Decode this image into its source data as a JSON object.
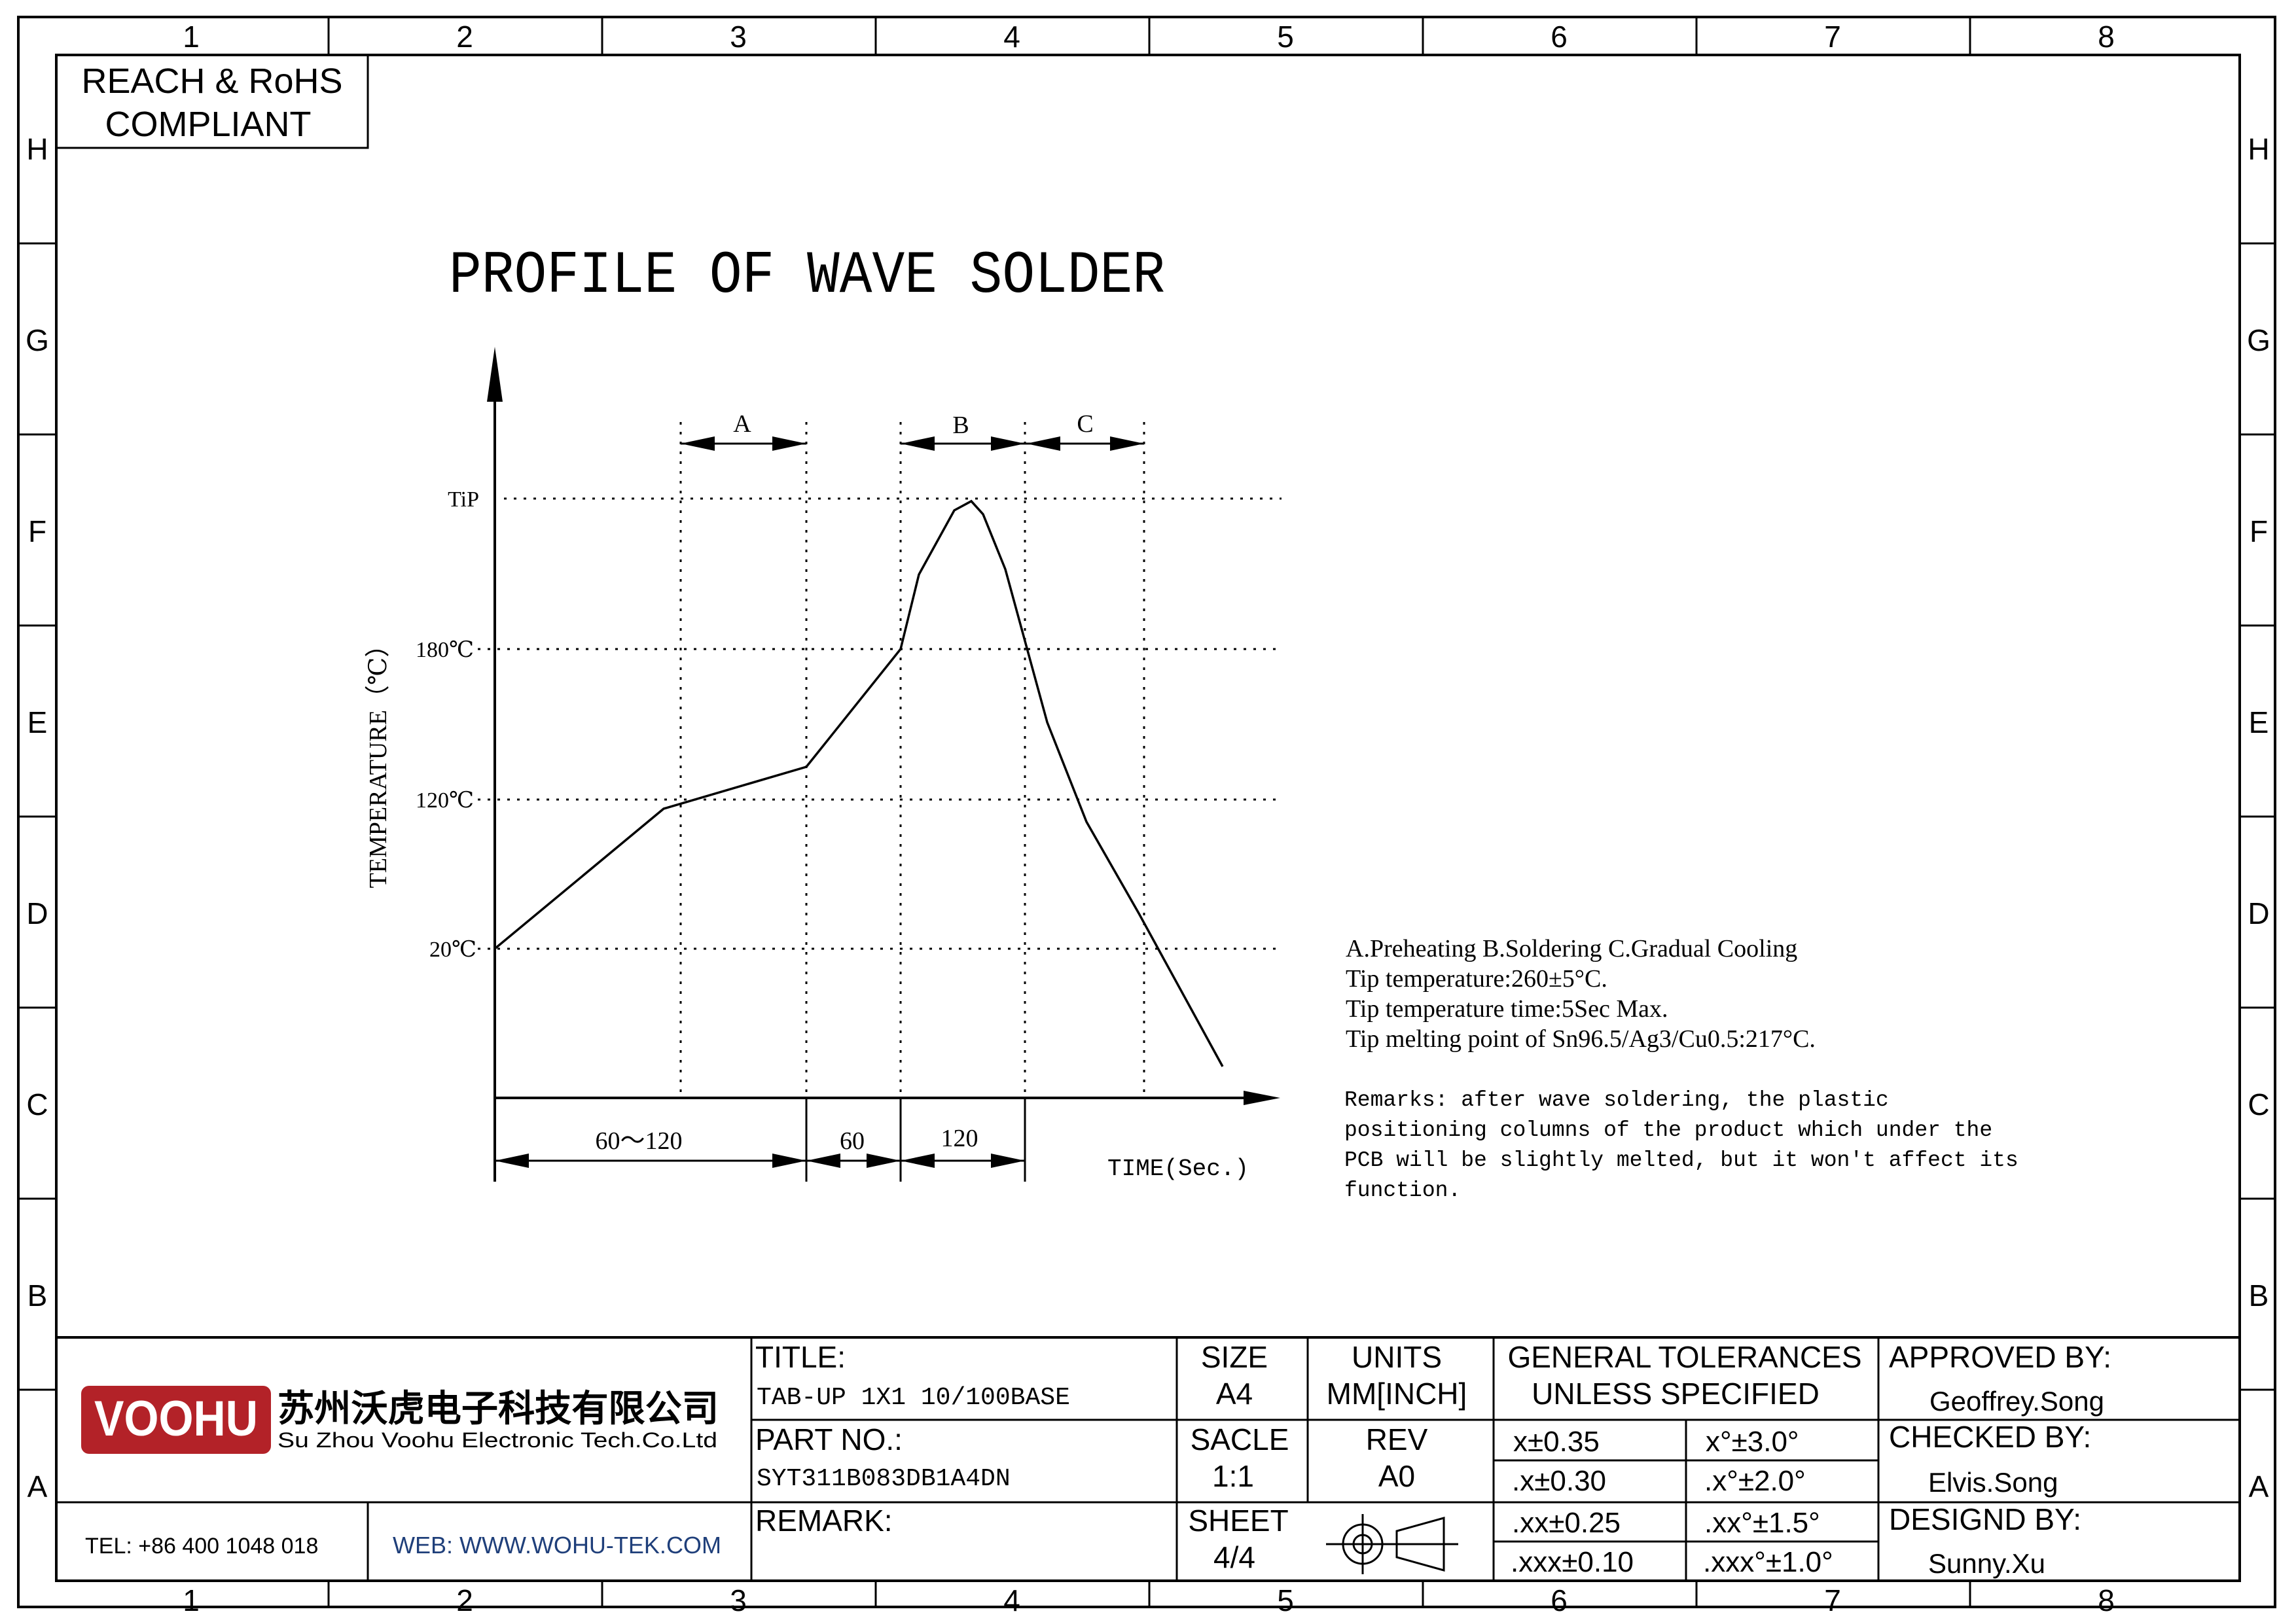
{
  "grid": {
    "columns": [
      "1",
      "2",
      "3",
      "4",
      "5",
      "6",
      "7",
      "8"
    ],
    "rows": [
      "H",
      "G",
      "F",
      "E",
      "D",
      "C",
      "B",
      "A"
    ]
  },
  "compliance_badge": {
    "line1": "REACH & RoHS",
    "line2": "COMPLIANT"
  },
  "diagram_title": "PROFILE OF WAVE SOLDER",
  "profile": {
    "y_axis_label": "TEMPERATURE（℃）",
    "x_axis_label": "TIME(Sec.)",
    "temp_levels": [
      "TiP",
      "180℃",
      "120℃",
      "20℃"
    ],
    "zone_labels": [
      "A",
      "B",
      "C"
    ],
    "time_spans": [
      "60～120",
      "60",
      "120"
    ]
  },
  "notes": {
    "lines": [
      "A.Preheating  B.Soldering  C.Gradual Cooling",
      "Tip temperature:260±5°C.",
      "Tip temperature time:5Sec Max.",
      "Tip melting point of Sn96.5/Ag3/Cu0.5:217°C."
    ],
    "remarks": [
      "Remarks: after wave soldering, the plastic",
      "positioning columns of the product  which under the",
      "PCB will be slightly melted, but it won't affect its",
      "function."
    ]
  },
  "company": {
    "logo_text": "VOOHU",
    "name_cn": "苏州沃虎电子科技有限公司",
    "name_en": "Su Zhou Voohu Electronic Tech.Co.Ltd",
    "tel": "TEL: +86 400 1048 018",
    "web": "WEB: WWW.WOHU-TEK.COM",
    "brand_color": "#b32228"
  },
  "title_block": {
    "title_label": "TITLE:",
    "title_value": "TAB-UP 1X1 10/100BASE",
    "part_label": "PART NO.:",
    "part_value": "SYT311B083DB1A4DN",
    "remark_label": "REMARK:",
    "size_label": "SIZE",
    "size_value": "A4",
    "units_label": "UNITS",
    "units_value": "MM[INCH]",
    "scale_label": "SACLE",
    "scale_value": "1:1",
    "rev_label": "REV",
    "rev_value": "A0",
    "sheet_label": "SHEET",
    "sheet_value": "4/4",
    "projection_symbol": "third-angle-projection-icon",
    "tolerances_title_1": "GENERAL TOLERANCES",
    "tolerances_title_2": "UNLESS SPECIFIED",
    "tolerances": [
      [
        "x±0.35",
        "x°±3.0°"
      ],
      [
        ".x±0.30",
        ".x°±2.0°"
      ],
      [
        ".xx±0.25",
        ".xx°±1.5°"
      ],
      [
        ".xxx±0.10",
        ".xxx°±1.0°"
      ]
    ],
    "approved_label": "APPROVED BY:",
    "approved_value": "Geoffrey.Song",
    "checked_label": "CHECKED BY:",
    "checked_value": "Elvis.Song",
    "designed_label": "DESIGND BY:",
    "designed_value": "Sunny.Xu"
  }
}
